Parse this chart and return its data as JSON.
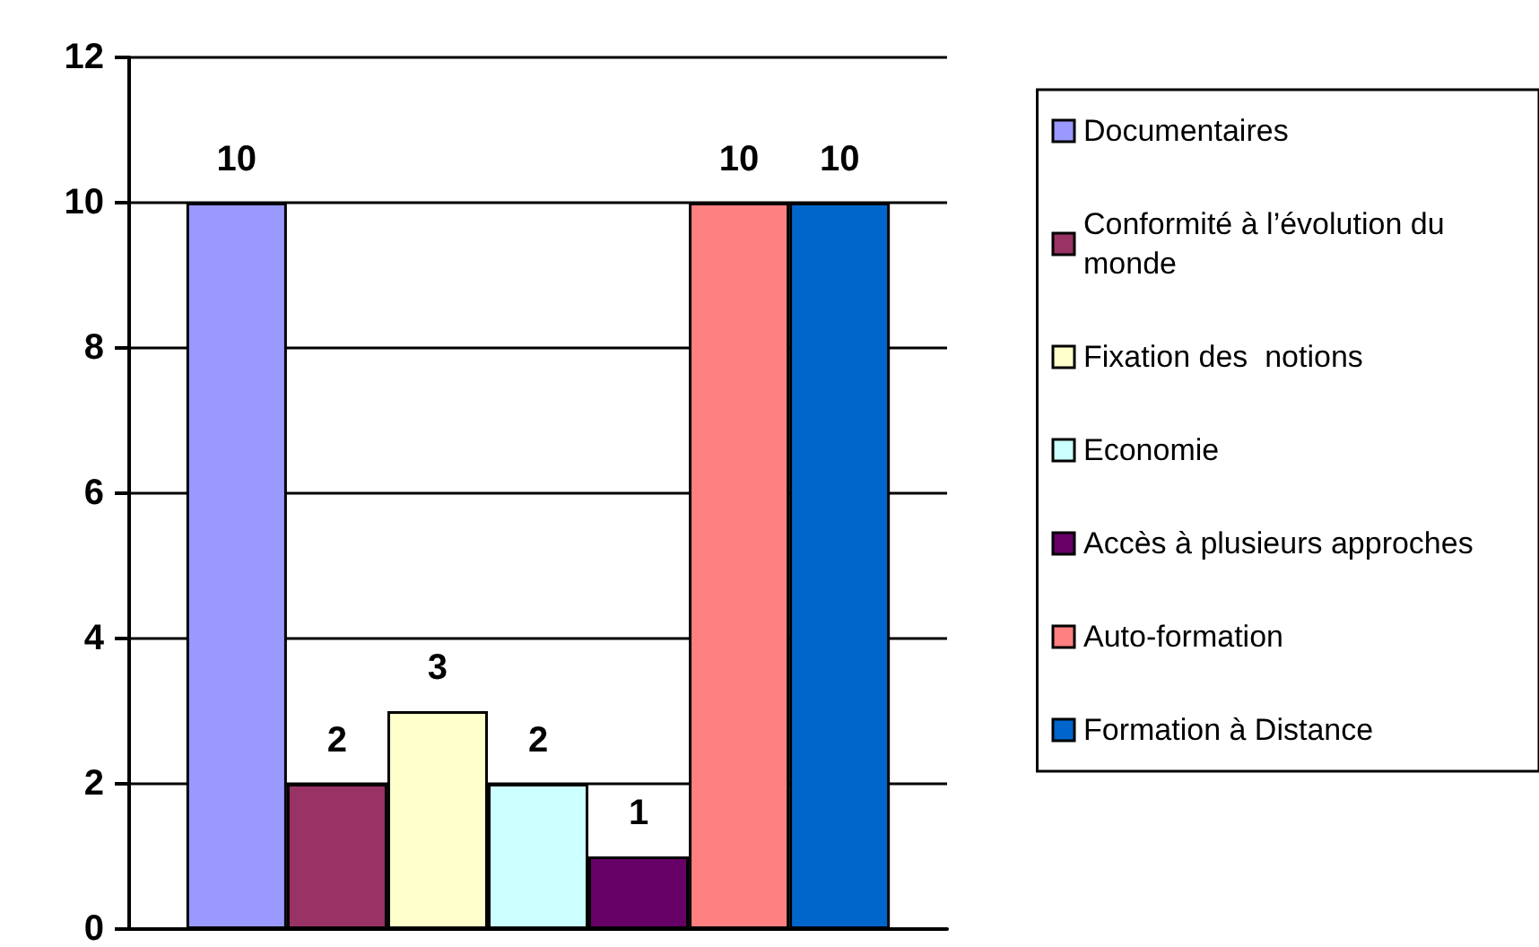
{
  "chart_data": {
    "type": "bar",
    "categories": [
      null
    ],
    "series": [
      {
        "name": "Documentaires",
        "color": "#9999ff",
        "values": [
          10
        ]
      },
      {
        "name": "Conformité à l’évolution du monde",
        "color": "#993366",
        "values": [
          2
        ]
      },
      {
        "name": "Fixation des  notions",
        "color": "#ffffcc",
        "values": [
          3
        ]
      },
      {
        "name": "Economie",
        "color": "#ccffff",
        "values": [
          2
        ]
      },
      {
        "name": "Accès à plusieurs approches",
        "color": "#660066",
        "values": [
          1
        ]
      },
      {
        "name": "Auto-formation",
        "color": "#ff8080",
        "values": [
          10
        ]
      },
      {
        "name": "Formation à Distance",
        "color": "#0066cc",
        "values": [
          10
        ]
      }
    ],
    "ylim": [
      0,
      12
    ],
    "yticks": [
      0,
      2,
      4,
      6,
      8,
      10,
      12
    ],
    "grid": "y",
    "legend": "right",
    "data_labels": true
  }
}
